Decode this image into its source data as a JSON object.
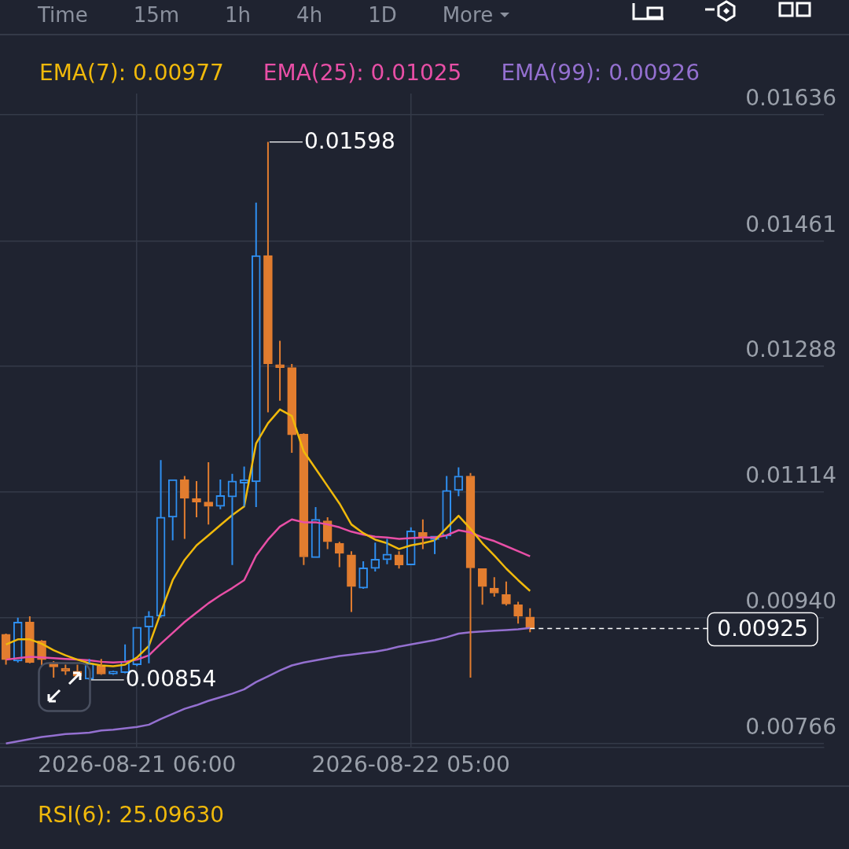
{
  "chart_data": {
    "type": "candlestick",
    "x": [
      "2026-08-20T19:00",
      "2026-08-20T20:00",
      "2026-08-20T21:00",
      "2026-08-20T22:00",
      "2026-08-20T23:00",
      "2026-08-21T00:00",
      "2026-08-21T01:00",
      "2026-08-21T02:00",
      "2026-08-21T03:00",
      "2026-08-21T04:00",
      "2026-08-21T05:00",
      "2026-08-21T06:00",
      "2026-08-21T07:00",
      "2026-08-21T08:00",
      "2026-08-21T09:00",
      "2026-08-21T10:00",
      "2026-08-21T11:00",
      "2026-08-21T12:00",
      "2026-08-21T13:00",
      "2026-08-21T14:00",
      "2026-08-21T15:00",
      "2026-08-21T16:00",
      "2026-08-21T17:00",
      "2026-08-21T18:00",
      "2026-08-21T19:00",
      "2026-08-21T20:00",
      "2026-08-21T21:00",
      "2026-08-21T22:00",
      "2026-08-21T23:00",
      "2026-08-22T00:00",
      "2026-08-22T01:00",
      "2026-08-22T02:00",
      "2026-08-22T03:00",
      "2026-08-22T04:00",
      "2026-08-22T05:00",
      "2026-08-22T06:00",
      "2026-08-22T07:00",
      "2026-08-22T08:00",
      "2026-08-22T09:00",
      "2026-08-22T10:00",
      "2026-08-22T11:00",
      "2026-08-22T12:00",
      "2026-08-22T13:00",
      "2026-08-22T14:00",
      "2026-08-22T15:00"
    ],
    "ohlc": [
      [
        0.00917,
        0.00918,
        0.00875,
        0.00882
      ],
      [
        0.0088,
        0.0094,
        0.00878,
        0.00934
      ],
      [
        0.00934,
        0.00942,
        0.00877,
        0.00878
      ],
      [
        0.00908,
        0.00909,
        0.00873,
        0.00882
      ],
      [
        0.00878,
        0.0088,
        0.00857,
        0.00872
      ],
      [
        0.0087,
        0.00875,
        0.00861,
        0.00866
      ],
      [
        0.00866,
        0.00875,
        0.00859,
        0.00859
      ],
      [
        0.00855,
        0.00883,
        0.00854,
        0.00877
      ],
      [
        0.00873,
        0.00883,
        0.00861,
        0.00862
      ],
      [
        0.00862,
        0.00867,
        0.00861,
        0.00866
      ],
      [
        0.00864,
        0.00903,
        0.00863,
        0.0088
      ],
      [
        0.00875,
        0.00927,
        0.00873,
        0.00927
      ],
      [
        0.00927,
        0.00949,
        0.00877,
        0.00942
      ],
      [
        0.00942,
        0.01158,
        0.0094,
        0.01079
      ],
      [
        0.01079,
        0.01131,
        0.01047,
        0.01131
      ],
      [
        0.01131,
        0.01136,
        0.01049,
        0.01105
      ],
      [
        0.01105,
        0.01129,
        0.01079,
        0.011
      ],
      [
        0.011,
        0.01155,
        0.01069,
        0.01094
      ],
      [
        0.01094,
        0.01131,
        0.0109,
        0.01109
      ],
      [
        0.01107,
        0.01139,
        0.01013,
        0.01129
      ],
      [
        0.01126,
        0.01149,
        0.01094,
        0.01131
      ],
      [
        0.01128,
        0.01514,
        0.01093,
        0.01441
      ],
      [
        0.01441,
        0.01598,
        0.01224,
        0.01291
      ],
      [
        0.0129,
        0.01323,
        0.0124,
        0.01286
      ],
      [
        0.01286,
        0.01291,
        0.01168,
        0.01193
      ],
      [
        0.01194,
        0.01195,
        0.01013,
        0.01024
      ],
      [
        0.01023,
        0.01093,
        0.01023,
        0.01076
      ],
      [
        0.01074,
        0.01079,
        0.01035,
        0.01045
      ],
      [
        0.01043,
        0.01045,
        0.0101,
        0.01029
      ],
      [
        0.01027,
        0.01032,
        0.00948,
        0.00983
      ],
      [
        0.00981,
        0.01018,
        0.0098,
        0.01009
      ],
      [
        0.01008,
        0.01044,
        0.01004,
        0.01021
      ],
      [
        0.0102,
        0.01049,
        0.01014,
        0.01028
      ],
      [
        0.01027,
        0.01032,
        0.01008,
        0.01013
      ],
      [
        0.01013,
        0.01065,
        0.01013,
        0.0106
      ],
      [
        0.01058,
        0.01076,
        0.01035,
        0.01051
      ],
      [
        0.01048,
        0.01053,
        0.01028,
        0.01053
      ],
      [
        0.01053,
        0.01136,
        0.01049,
        0.01116
      ],
      [
        0.01116,
        0.01148,
        0.01108,
        0.01136
      ],
      [
        0.01136,
        0.0114,
        0.00857,
        0.01009
      ],
      [
        0.01008,
        0.01008,
        0.00958,
        0.00983
      ],
      [
        0.00981,
        0.00996,
        0.00969,
        0.00974
      ],
      [
        0.00972,
        0.0099,
        0.00957,
        0.00959
      ],
      [
        0.00958,
        0.00962,
        0.00932,
        0.00942
      ],
      [
        0.00941,
        0.00953,
        0.0092,
        0.00925
      ]
    ],
    "colors": [
      "#e27d2f",
      "#2f8ff0",
      "#e27d2f",
      "#e27d2f",
      "#e27d2f",
      "#e27d2f",
      "#e27d2f",
      "#2f8ff0",
      "#e27d2f",
      "#2f8ff0",
      "#2f8ff0",
      "#2f8ff0",
      "#2f8ff0",
      "#2f8ff0",
      "#2f8ff0",
      "#e27d2f",
      "#e27d2f",
      "#e27d2f",
      "#2f8ff0",
      "#2f8ff0",
      "#2f8ff0",
      "#2f8ff0",
      "#e27d2f",
      "#e27d2f",
      "#e27d2f",
      "#e27d2f",
      "#2f8ff0",
      "#e27d2f",
      "#e27d2f",
      "#e27d2f",
      "#2f8ff0",
      "#2f8ff0",
      "#2f8ff0",
      "#e27d2f",
      "#2f8ff0",
      "#e27d2f",
      "#2f8ff0",
      "#2f8ff0",
      "#2f8ff0",
      "#e27d2f",
      "#e27d2f",
      "#e27d2f",
      "#e27d2f",
      "#e27d2f",
      "#e27d2f"
    ],
    "series": [
      {
        "type": "line",
        "name": "EMA(7): 0.00977",
        "color": "#f0b90b",
        "values": [
          0.00903,
          0.0091,
          0.0091,
          0.00904,
          0.00895,
          0.00888,
          0.00882,
          0.00877,
          0.00874,
          0.00873,
          0.00875,
          0.00885,
          0.00901,
          0.00947,
          0.00992,
          0.0102,
          0.0104,
          0.01054,
          0.01068,
          0.01082,
          0.01094,
          0.01181,
          0.01209,
          0.01228,
          0.01219,
          0.0117,
          0.01146,
          0.01122,
          0.01098,
          0.01069,
          0.01057,
          0.01048,
          0.01043,
          0.01035,
          0.0104,
          0.01043,
          0.01047,
          0.01064,
          0.01081,
          0.01063,
          0.01043,
          0.01026,
          0.01008,
          0.00992,
          0.00977
        ]
      },
      {
        "type": "line",
        "name": "EMA(25): 0.01025",
        "color": "#e84fa6",
        "values": [
          0.00882,
          0.00884,
          0.00886,
          0.00885,
          0.00884,
          0.00883,
          0.00882,
          0.00881,
          0.00879,
          0.00878,
          0.00879,
          0.00882,
          0.00888,
          0.00904,
          0.00919,
          0.00934,
          0.00947,
          0.0096,
          0.00971,
          0.00981,
          0.00992,
          0.01026,
          0.01048,
          0.01066,
          0.01076,
          0.01072,
          0.01072,
          0.01069,
          0.01065,
          0.01059,
          0.01055,
          0.01052,
          0.01051,
          0.01049,
          0.0105,
          0.01051,
          0.01051,
          0.01054,
          0.01061,
          0.01058,
          0.01051,
          0.01046,
          0.01039,
          0.01032,
          0.01025
        ]
      },
      {
        "type": "line",
        "name": "EMA(99): 0.00926",
        "color": "#9470d0",
        "values": [
          0.00766,
          0.00769,
          0.00772,
          0.00775,
          0.00777,
          0.00779,
          0.0078,
          0.00781,
          0.00784,
          0.00785,
          0.00787,
          0.00789,
          0.00792,
          0.008,
          0.00807,
          0.00814,
          0.00819,
          0.00825,
          0.0083,
          0.00835,
          0.00841,
          0.00851,
          0.00859,
          0.00867,
          0.00874,
          0.00878,
          0.00881,
          0.00884,
          0.00887,
          0.00889,
          0.00891,
          0.00893,
          0.00896,
          0.009,
          0.00903,
          0.00906,
          0.00909,
          0.00913,
          0.00918,
          0.0092,
          0.00921,
          0.00922,
          0.00923,
          0.00924,
          0.00926
        ]
      }
    ],
    "xlim": [
      "2026-08-20T18:30",
      "2026-08-23T15:40"
    ],
    "xticks": [
      {
        "value": "2026-08-21T06:00",
        "label": "2026-08-21 06:00"
      },
      {
        "value": "2026-08-22T05:00",
        "label": "2026-08-22 05:00"
      }
    ],
    "ylim": [
      0.00761,
      0.01665
    ],
    "yticks": [
      0.00766,
      {
        "value": 0.0094,
        "label": "0.00940"
      },
      0.01114,
      0.01288,
      0.01461,
      0.01636
    ],
    "grid": true,
    "legend": "top left",
    "ref_lines": [
      {
        "axis": "y",
        "value": 0.00925,
        "label": "0.00925",
        "color": "#ffffff",
        "line_style": "dashed"
      }
    ],
    "annotations": [
      {
        "text": "0.01598",
        "x": "2026-08-21T17:00",
        "y": 0.01598
      },
      {
        "text": "0.00854",
        "x": "2026-08-21T02:00",
        "y": 0.00854
      },
      "Time",
      "15m",
      "1h",
      "4h",
      "1D",
      "More",
      "RSI(6): 25.09630"
    ]
  }
}
